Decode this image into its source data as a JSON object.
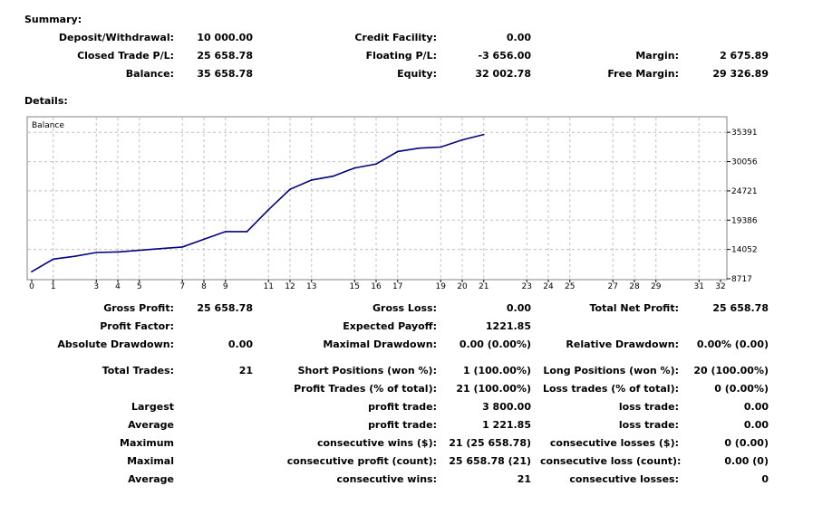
{
  "summary": {
    "title": "Summary:",
    "deposit_label": "Deposit/Withdrawal:",
    "deposit_value": "10 000.00",
    "credit_label": "Credit Facility:",
    "credit_value": "0.00",
    "closed_pl_label": "Closed Trade P/L:",
    "closed_pl_value": "25 658.78",
    "floating_pl_label": "Floating P/L:",
    "floating_pl_value": "-3 656.00",
    "margin_label": "Margin:",
    "margin_value": "2 675.89",
    "balance_label": "Balance:",
    "balance_value": "35 658.78",
    "equity_label": "Equity:",
    "equity_value": "32 002.78",
    "free_margin_label": "Free Margin:",
    "free_margin_value": "29 326.89"
  },
  "details": {
    "title": "Details:",
    "gross_profit_label": "Gross Profit:",
    "gross_profit_value": "25 658.78",
    "gross_loss_label": "Gross Loss:",
    "gross_loss_value": "0.00",
    "total_net_profit_label": "Total Net Profit:",
    "total_net_profit_value": "25 658.78",
    "profit_factor_label": "Profit Factor:",
    "expected_payoff_label": "Expected Payoff:",
    "expected_payoff_value": "1221.85",
    "abs_drawdown_label": "Absolute Drawdown:",
    "abs_drawdown_value": "0.00",
    "max_drawdown_label": "Maximal Drawdown:",
    "max_drawdown_value": "0.00 (0.00%)",
    "rel_drawdown_label": "Relative Drawdown:",
    "rel_drawdown_value": "0.00% (0.00)",
    "total_trades_label": "Total Trades:",
    "total_trades_value": "21",
    "short_positions_label": "Short Positions (won %):",
    "short_positions_value": "1 (100.00%)",
    "long_positions_label": "Long Positions (won %):",
    "long_positions_value": "20 (100.00%)",
    "profit_trades_label": "Profit Trades (% of total):",
    "profit_trades_value": "21 (100.00%)",
    "loss_trades_label": "Loss trades (% of total):",
    "loss_trades_value": "0 (0.00%)",
    "largest_label": "Largest",
    "largest_profit_label": "profit trade:",
    "largest_profit_value": "3 800.00",
    "largest_loss_label": "loss trade:",
    "largest_loss_value": "0.00",
    "average_label": "Average",
    "average_profit_label": "profit trade:",
    "average_profit_value": "1 221.85",
    "average_loss_label": "loss trade:",
    "average_loss_value": "0.00",
    "maximum_label": "Maximum",
    "max_consec_wins_label": "consecutive wins ($):",
    "max_consec_wins_value": "21 (25 658.78)",
    "max_consec_losses_label": "consecutive losses ($):",
    "max_consec_losses_value": "0 (0.00)",
    "maximal_label": "Maximal",
    "maximal_consec_profit_label": "consecutive profit (count):",
    "maximal_consec_profit_value": "25 658.78 (21)",
    "maximal_consec_loss_label": "consecutive loss (count):",
    "maximal_consec_loss_value": "0.00 (0)",
    "average2_label": "Average",
    "avg_consec_wins_label": "consecutive wins:",
    "avg_consec_wins_value": "21",
    "avg_consec_losses_label": "consecutive losses:",
    "avg_consec_losses_value": "0"
  },
  "chart_data": {
    "type": "line",
    "title": "Balance",
    "xlabel": "",
    "ylabel": "",
    "x": [
      0,
      1,
      2,
      3,
      4,
      5,
      6,
      7,
      8,
      9,
      10,
      11,
      12,
      13,
      14,
      15,
      16,
      17,
      18,
      19,
      20,
      21
    ],
    "values": [
      10000,
      12300,
      12800,
      13500,
      13600,
      13900,
      14200,
      14500,
      15900,
      17300,
      17300,
      21300,
      25000,
      26700,
      27400,
      28900,
      29600,
      31900,
      32500,
      32700,
      34000,
      35000
    ],
    "xlim": [
      0,
      32
    ],
    "ylim": [
      8717,
      38063
    ],
    "x_ticks": [
      0,
      1,
      3,
      4,
      5,
      7,
      8,
      9,
      11,
      12,
      13,
      15,
      16,
      17,
      19,
      20,
      21,
      23,
      24,
      25,
      27,
      28,
      29,
      31,
      32
    ],
    "y_ticks": [
      8717,
      14052,
      19386,
      24721,
      30056,
      35391
    ],
    "grid": true,
    "line_color": "#000080",
    "grid_color": "#c0c0c0"
  }
}
